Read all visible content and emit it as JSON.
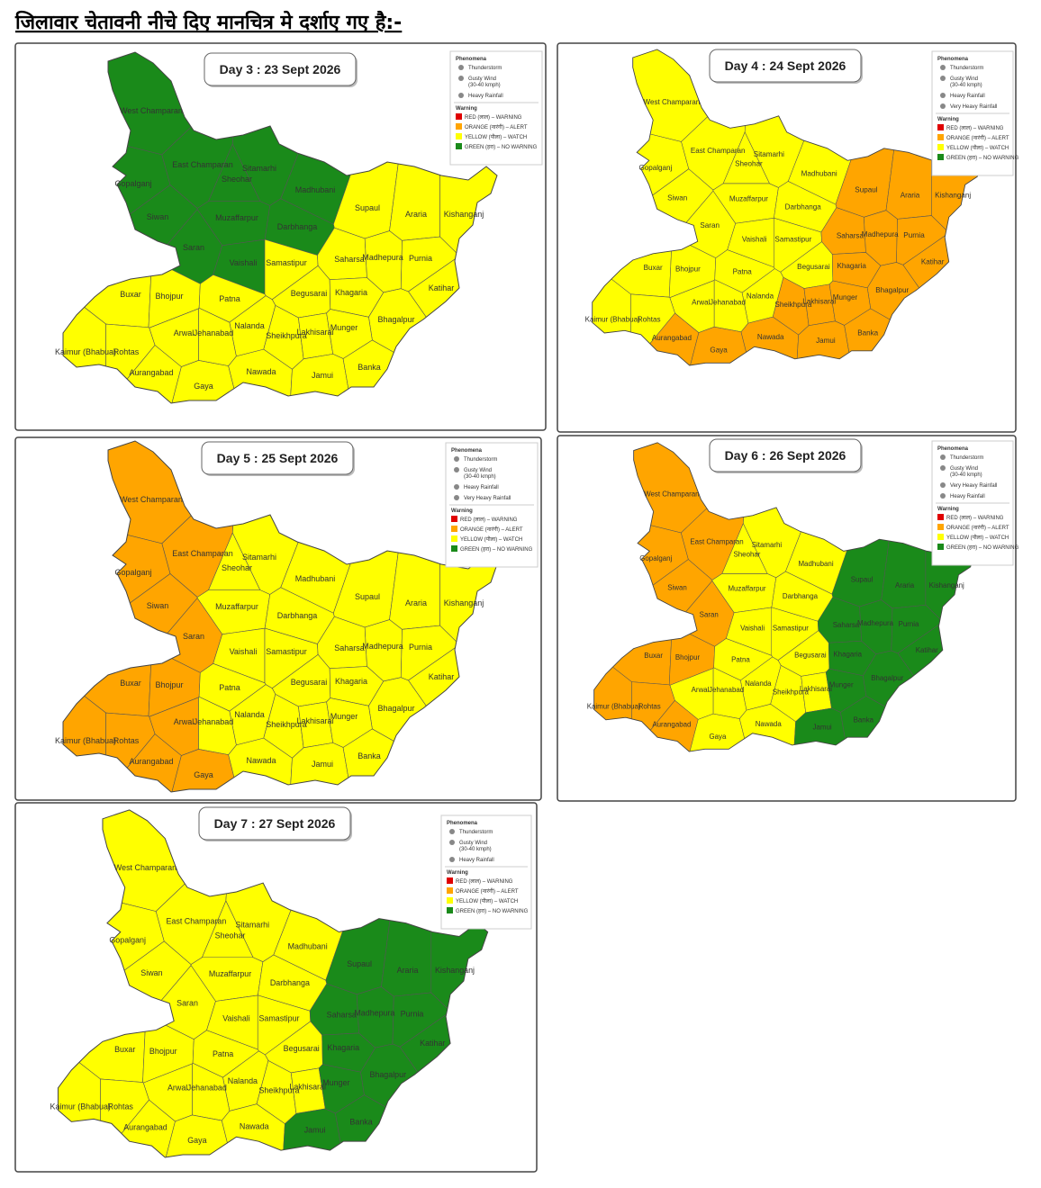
{
  "heading": "जिलावार चेतावनी नीचे दिए मानचित्र मे दर्शाए   गए है:-",
  "districts": [
    "West Champaran",
    "East Champaran",
    "Sitamarhi",
    "Sheohar",
    "Gopalganj",
    "Madhubani",
    "Supaul",
    "Araria",
    "Kishanganj",
    "Siwan",
    "Muzaffarpur",
    "Darbhanga",
    "Saran",
    "Vaishali",
    "Samastipur",
    "Saharsa",
    "Madhepura",
    "Purnia",
    "Katihar",
    "Buxar",
    "Bhojpur",
    "Patna",
    "Begusarai",
    "Khagaria",
    "Bhagalpur",
    "Nalanda",
    "Arwal",
    "Jehanabad",
    "Sheikhpura",
    "Lakhisarai",
    "Munger",
    "Kaimur (Bhabua)",
    "Rohtas",
    "Aurangabad",
    "Gaya",
    "Nawada",
    "Jamui",
    "Banka"
  ],
  "legend": {
    "phenomena_title": "Phenomena",
    "warning_title": "Warning",
    "warnings": [
      {
        "label": "RED (लाल) – WARNING",
        "color": "#e00000"
      },
      {
        "label": "ORANGE (नारंगी) – ALERT",
        "color": "#ffa500"
      },
      {
        "label": "YELLOW (पीला) – WATCH",
        "color": "#ffff00"
      },
      {
        "label": "GREEN (हरा) – NO WARNING",
        "color": "#1a8a1a"
      }
    ]
  },
  "panels": [
    {
      "title": "Day 3 : 23 Sept 2026",
      "phenomena": [
        {
          "label": "Thunderstorm"
        },
        {
          "label": "Gusty Wind",
          "note": "(30-40 kmph)"
        },
        {
          "label": "Heavy Rainfall"
        }
      ],
      "district_colors": [
        "#1a8a1a",
        "#1a8a1a",
        "#1a8a1a",
        "#1a8a1a",
        "#1a8a1a",
        "#1a8a1a",
        "#ffff00",
        "#ffff00",
        "#ffff00",
        "#1a8a1a",
        "#1a8a1a",
        "#1a8a1a",
        "#1a8a1a",
        "#1a8a1a",
        "#ffff00",
        "#ffff00",
        "#ffff00",
        "#ffff00",
        "#ffff00",
        "#ffff00",
        "#ffff00",
        "#ffff00",
        "#ffff00",
        "#ffff00",
        "#ffff00",
        "#ffff00",
        "#ffff00",
        "#ffff00",
        "#ffff00",
        "#ffff00",
        "#ffff00",
        "#ffff00",
        "#ffff00",
        "#ffff00",
        "#ffff00",
        "#ffff00",
        "#ffff00",
        "#ffff00"
      ]
    },
    {
      "title": "Day 4 : 24 Sept 2026",
      "phenomena": [
        {
          "label": "Thunderstorm"
        },
        {
          "label": "Gusty Wind",
          "note": "(30-40 kmph)"
        },
        {
          "label": "Heavy Rainfall"
        },
        {
          "label": "Very Heavy Rainfall"
        }
      ],
      "district_colors": [
        "#ffff00",
        "#ffff00",
        "#ffff00",
        "#ffff00",
        "#ffff00",
        "#ffff00",
        "#ffa500",
        "#ffa500",
        "#ffa500",
        "#ffff00",
        "#ffff00",
        "#ffff00",
        "#ffff00",
        "#ffff00",
        "#ffff00",
        "#ffa500",
        "#ffa500",
        "#ffa500",
        "#ffa500",
        "#ffff00",
        "#ffff00",
        "#ffff00",
        "#ffff00",
        "#ffa500",
        "#ffa500",
        "#ffff00",
        "#ffff00",
        "#ffff00",
        "#ffa500",
        "#ffa500",
        "#ffa500",
        "#ffff00",
        "#ffff00",
        "#ffa500",
        "#ffa500",
        "#ffa500",
        "#ffa500",
        "#ffa500"
      ]
    },
    {
      "title": "Day 5 : 25 Sept 2026",
      "phenomena": [
        {
          "label": "Thunderstorm"
        },
        {
          "label": "Gusty Wind",
          "note": "(30-40 kmph)"
        },
        {
          "label": "Heavy Rainfall"
        },
        {
          "label": "Very Heavy Rainfall"
        }
      ],
      "district_colors": [
        "#ffa500",
        "#ffa500",
        "#ffff00",
        "#ffff00",
        "#ffa500",
        "#ffff00",
        "#ffff00",
        "#ffff00",
        "#ffff00",
        "#ffa500",
        "#ffff00",
        "#ffff00",
        "#ffa500",
        "#ffff00",
        "#ffff00",
        "#ffff00",
        "#ffff00",
        "#ffff00",
        "#ffff00",
        "#ffa500",
        "#ffa500",
        "#ffff00",
        "#ffff00",
        "#ffff00",
        "#ffff00",
        "#ffff00",
        "#ffa500",
        "#ffff00",
        "#ffff00",
        "#ffff00",
        "#ffff00",
        "#ffa500",
        "#ffa500",
        "#ffa500",
        "#ffa500",
        "#ffff00",
        "#ffff00",
        "#ffff00"
      ]
    },
    {
      "title": "Day 6 : 26 Sept 2026",
      "phenomena": [
        {
          "label": "Thunderstorm"
        },
        {
          "label": "Gusty Wind",
          "note": "(30-40 kmph)"
        },
        {
          "label": "Very Heavy Rainfall"
        },
        {
          "label": "Heavy Rainfall"
        }
      ],
      "district_colors": [
        "#ffa500",
        "#ffa500",
        "#ffff00",
        "#ffff00",
        "#ffa500",
        "#ffff00",
        "#1a8a1a",
        "#1a8a1a",
        "#1a8a1a",
        "#ffa500",
        "#ffff00",
        "#ffff00",
        "#ffa500",
        "#ffff00",
        "#ffff00",
        "#1a8a1a",
        "#1a8a1a",
        "#1a8a1a",
        "#1a8a1a",
        "#ffa500",
        "#ffa500",
        "#ffff00",
        "#ffff00",
        "#1a8a1a",
        "#1a8a1a",
        "#ffff00",
        "#ffff00",
        "#ffff00",
        "#ffff00",
        "#ffff00",
        "#1a8a1a",
        "#ffa500",
        "#ffa500",
        "#ffa500",
        "#ffff00",
        "#ffff00",
        "#1a8a1a",
        "#1a8a1a"
      ]
    },
    {
      "title": "Day 7 : 27 Sept 2026",
      "phenomena": [
        {
          "label": "Thunderstorm"
        },
        {
          "label": "Gusty Wind",
          "note": "(30-40 kmph)"
        },
        {
          "label": "Heavy Rainfall"
        }
      ],
      "district_colors": [
        "#ffff00",
        "#ffff00",
        "#ffff00",
        "#ffff00",
        "#ffff00",
        "#ffff00",
        "#1a8a1a",
        "#1a8a1a",
        "#1a8a1a",
        "#ffff00",
        "#ffff00",
        "#ffff00",
        "#ffff00",
        "#ffff00",
        "#ffff00",
        "#1a8a1a",
        "#1a8a1a",
        "#1a8a1a",
        "#1a8a1a",
        "#ffff00",
        "#ffff00",
        "#ffff00",
        "#ffff00",
        "#1a8a1a",
        "#1a8a1a",
        "#ffff00",
        "#ffff00",
        "#ffff00",
        "#ffff00",
        "#ffff00",
        "#1a8a1a",
        "#ffff00",
        "#ffff00",
        "#ffff00",
        "#ffff00",
        "#ffff00",
        "#1a8a1a",
        "#1a8a1a"
      ]
    }
  ]
}
